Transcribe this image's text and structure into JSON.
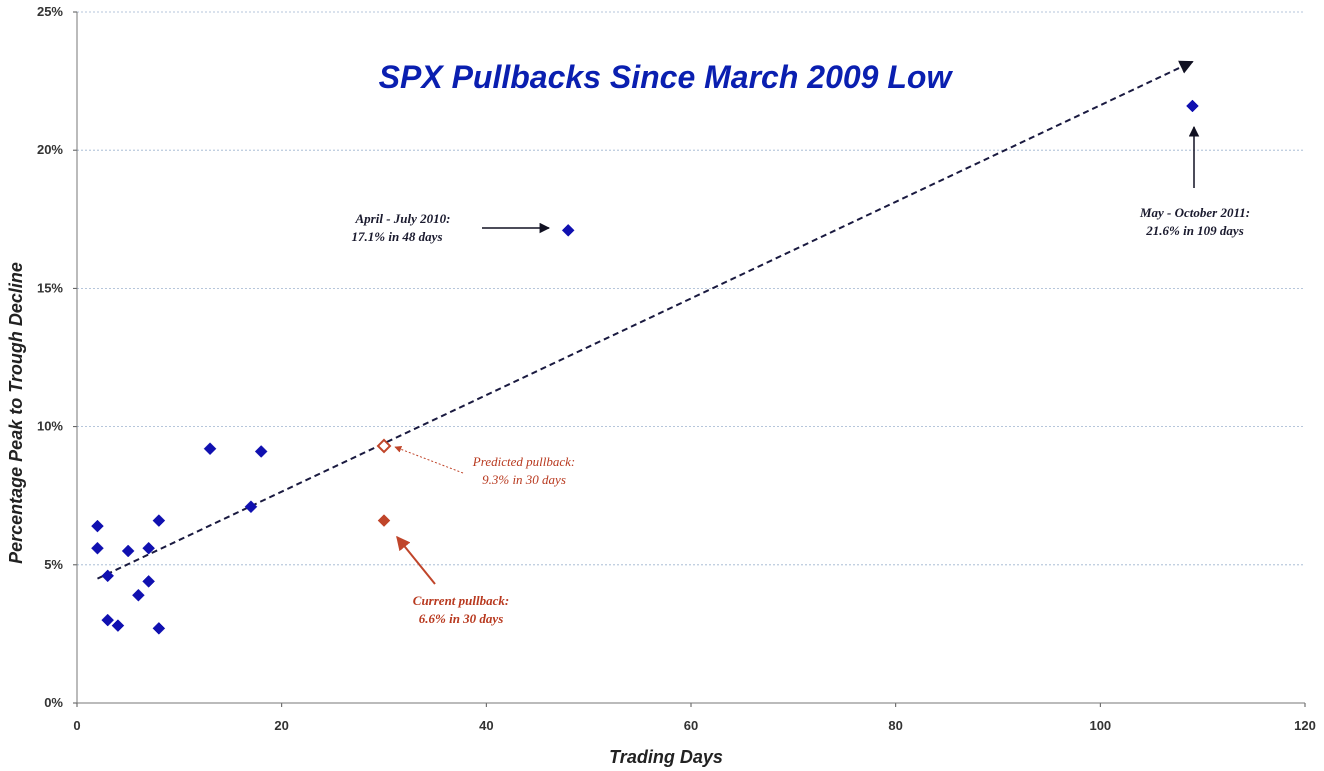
{
  "chart_data": {
    "type": "scatter",
    "title": "SPX Pullbacks Since March 2009 Low",
    "xlabel": "Trading Days",
    "ylabel": "Percentage Peak to Trough Decline",
    "xlim": [
      0,
      120
    ],
    "ylim": [
      0,
      25
    ],
    "x_ticks": [
      "0",
      "20",
      "40",
      "60",
      "80",
      "100",
      "120"
    ],
    "y_ticks": [
      "0%",
      "5%",
      "10%",
      "15%",
      "20%",
      "25%"
    ],
    "grid": "horizontal dashed",
    "series": [
      {
        "color": "#1010b0",
        "marker": "diamond",
        "points": [
          {
            "x": 2,
            "y": 6.4
          },
          {
            "x": 2,
            "y": 5.6
          },
          {
            "x": 3,
            "y": 4.6
          },
          {
            "x": 3,
            "y": 3.0
          },
          {
            "x": 4,
            "y": 2.8
          },
          {
            "x": 5,
            "y": 5.5
          },
          {
            "x": 6,
            "y": 3.9
          },
          {
            "x": 7,
            "y": 5.6
          },
          {
            "x": 7,
            "y": 4.4
          },
          {
            "x": 8,
            "y": 6.6
          },
          {
            "x": 8,
            "y": 2.7
          },
          {
            "x": 13,
            "y": 9.2
          },
          {
            "x": 17,
            "y": 7.1
          },
          {
            "x": 18,
            "y": 9.1
          },
          {
            "x": 48,
            "y": 17.1
          },
          {
            "x": 109,
            "y": 21.6
          }
        ]
      },
      {
        "color": "#c0452a",
        "marker": "diamond",
        "points": [
          {
            "x": 30,
            "y": 6.6
          }
        ]
      },
      {
        "color": "#c0452a",
        "marker": "diamond-open",
        "points": [
          {
            "x": 30,
            "y": 9.3
          }
        ]
      }
    ],
    "trendline": {
      "x": [
        2,
        109
      ],
      "y": [
        4.5,
        23.2
      ],
      "color": "#1a1a40",
      "style": "dashed",
      "arrow": "end"
    },
    "annotations": [
      {
        "lines": [
          "April - July 2010:",
          "17.1% in 48 days"
        ],
        "color": "#1a1a2e",
        "weight": "bold"
      },
      {
        "lines": [
          "May - October 2011:",
          "21.6% in 109 days"
        ],
        "color": "#1a1a2e",
        "weight": "bold"
      },
      {
        "lines": [
          "Predicted pullback:",
          "9.3% in 30 days"
        ],
        "color": "#b8391f",
        "weight": "normal"
      },
      {
        "lines": [
          "Current pullback:",
          "6.6% in 30 days"
        ],
        "color": "#b8391f",
        "weight": "bold"
      }
    ]
  }
}
